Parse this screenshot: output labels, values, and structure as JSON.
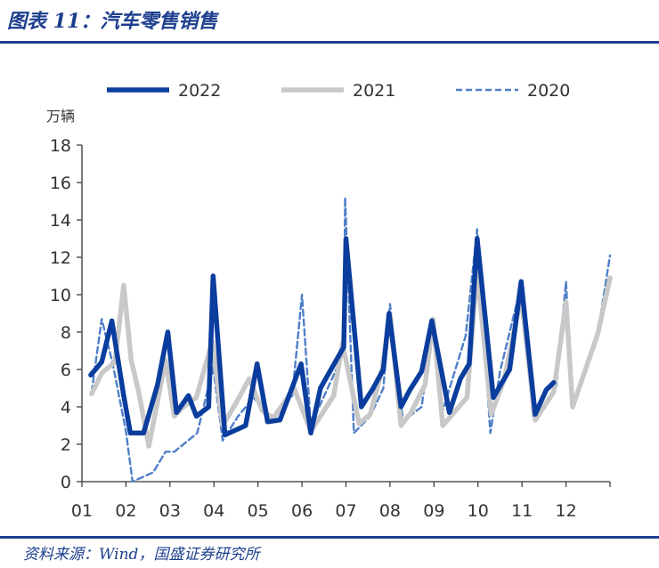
{
  "header": {
    "title": "图表 11：汽车零售销售"
  },
  "footer": {
    "source": "资料来源：Wind，国盛证券研究所"
  },
  "colors": {
    "2022": "#0a3d9e",
    "2021": "#c8c8c8",
    "2020": "#4f7fc8",
    "rule": "#1d3f8f"
  },
  "chart_data": {
    "type": "line",
    "ylabel": "万辆",
    "ylim": [
      0,
      18
    ],
    "yticks": [
      "0",
      "2",
      "4",
      "6",
      "8",
      "10",
      "12",
      "14",
      "16",
      "18"
    ],
    "xticks": [
      "01",
      "02",
      "03",
      "04",
      "05",
      "06",
      "07",
      "08",
      "09",
      "10",
      "11",
      "12"
    ],
    "xlim": [
      1,
      13
    ],
    "legend": {
      "placement": "top"
    },
    "series": [
      {
        "name": "2022",
        "style": "solid-thick",
        "points": [
          [
            1.2,
            5.7
          ],
          [
            1.45,
            6.4
          ],
          [
            1.68,
            8.6
          ],
          [
            1.95,
            4.6
          ],
          [
            2.1,
            2.6
          ],
          [
            2.4,
            2.6
          ],
          [
            2.72,
            5.2
          ],
          [
            2.95,
            8.0
          ],
          [
            3.15,
            3.7
          ],
          [
            3.42,
            4.6
          ],
          [
            3.6,
            3.5
          ],
          [
            3.88,
            4.0
          ],
          [
            3.98,
            11.0
          ],
          [
            4.25,
            2.5
          ],
          [
            4.72,
            3.0
          ],
          [
            4.98,
            6.3
          ],
          [
            5.22,
            3.2
          ],
          [
            5.5,
            3.3
          ],
          [
            5.98,
            6.3
          ],
          [
            6.2,
            2.6
          ],
          [
            6.42,
            5.0
          ],
          [
            6.95,
            7.2
          ],
          [
            7.0,
            13.0
          ],
          [
            7.35,
            4.0
          ],
          [
            7.62,
            5.0
          ],
          [
            7.85,
            6.0
          ],
          [
            7.98,
            9.0
          ],
          [
            8.25,
            4.0
          ],
          [
            8.45,
            4.9
          ],
          [
            8.72,
            5.9
          ],
          [
            8.95,
            8.6
          ],
          [
            9.35,
            3.7
          ],
          [
            9.6,
            5.5
          ],
          [
            9.8,
            6.3
          ],
          [
            9.98,
            13.0
          ],
          [
            10.35,
            4.5
          ],
          [
            10.72,
            6.0
          ],
          [
            10.98,
            10.7
          ],
          [
            11.3,
            3.6
          ],
          [
            11.55,
            4.9
          ],
          [
            11.72,
            5.3
          ]
        ]
      },
      {
        "name": "2021",
        "style": "solid-thick",
        "points": [
          [
            1.22,
            4.7
          ],
          [
            1.45,
            5.8
          ],
          [
            1.75,
            6.4
          ],
          [
            1.95,
            10.5
          ],
          [
            2.12,
            6.5
          ],
          [
            2.3,
            4.7
          ],
          [
            2.52,
            1.9
          ],
          [
            2.9,
            6.5
          ],
          [
            3.1,
            3.5
          ],
          [
            3.3,
            4.0
          ],
          [
            3.6,
            4.5
          ],
          [
            3.96,
            7.5
          ],
          [
            4.2,
            3.0
          ],
          [
            4.5,
            4.2
          ],
          [
            4.8,
            5.5
          ],
          [
            5.1,
            3.8
          ],
          [
            5.35,
            3.4
          ],
          [
            5.82,
            5.0
          ],
          [
            6.2,
            2.7
          ],
          [
            6.72,
            4.6
          ],
          [
            6.92,
            7.4
          ],
          [
            7.3,
            3.1
          ],
          [
            7.55,
            3.6
          ],
          [
            7.82,
            6.0
          ],
          [
            8.0,
            9.0
          ],
          [
            8.25,
            3.0
          ],
          [
            8.48,
            3.7
          ],
          [
            8.8,
            5.2
          ],
          [
            8.98,
            8.7
          ],
          [
            9.2,
            3.0
          ],
          [
            9.75,
            4.5
          ],
          [
            9.98,
            11.3
          ],
          [
            10.3,
            3.6
          ],
          [
            10.6,
            5.5
          ],
          [
            10.98,
            9.9
          ],
          [
            11.3,
            3.3
          ],
          [
            11.72,
            4.8
          ],
          [
            12.0,
            9.6
          ],
          [
            12.15,
            4.0
          ],
          [
            12.72,
            7.9
          ],
          [
            13.0,
            10.9
          ]
        ]
      },
      {
        "name": "2020",
        "style": "dashed",
        "points": [
          [
            1.22,
            4.8
          ],
          [
            1.45,
            8.7
          ],
          [
            1.7,
            6.3
          ],
          [
            2.0,
            2.7
          ],
          [
            2.15,
            0.0
          ],
          [
            2.62,
            0.5
          ],
          [
            2.9,
            1.6
          ],
          [
            3.1,
            1.6
          ],
          [
            3.62,
            2.6
          ],
          [
            3.98,
            6.1
          ],
          [
            4.2,
            2.2
          ],
          [
            4.55,
            3.5
          ],
          [
            4.9,
            4.5
          ],
          [
            5.35,
            3.3
          ],
          [
            5.78,
            4.6
          ],
          [
            6.0,
            10.0
          ],
          [
            6.2,
            3.0
          ],
          [
            6.95,
            6.9
          ],
          [
            6.98,
            15.2
          ],
          [
            7.18,
            2.6
          ],
          [
            7.55,
            3.5
          ],
          [
            7.85,
            5.0
          ],
          [
            8.0,
            9.5
          ],
          [
            8.3,
            3.2
          ],
          [
            8.5,
            3.6
          ],
          [
            8.72,
            4.0
          ],
          [
            8.98,
            8.8
          ],
          [
            9.2,
            3.8
          ],
          [
            9.72,
            7.8
          ],
          [
            9.98,
            13.5
          ],
          [
            10.28,
            2.6
          ],
          [
            10.5,
            5.9
          ],
          [
            10.98,
            10.5
          ],
          [
            11.25,
            3.5
          ],
          [
            11.6,
            5.0
          ],
          [
            11.78,
            5.1
          ],
          [
            12.0,
            10.7
          ],
          [
            12.15,
            3.9
          ],
          [
            12.72,
            7.9
          ],
          [
            13.0,
            12.1
          ]
        ]
      }
    ]
  }
}
